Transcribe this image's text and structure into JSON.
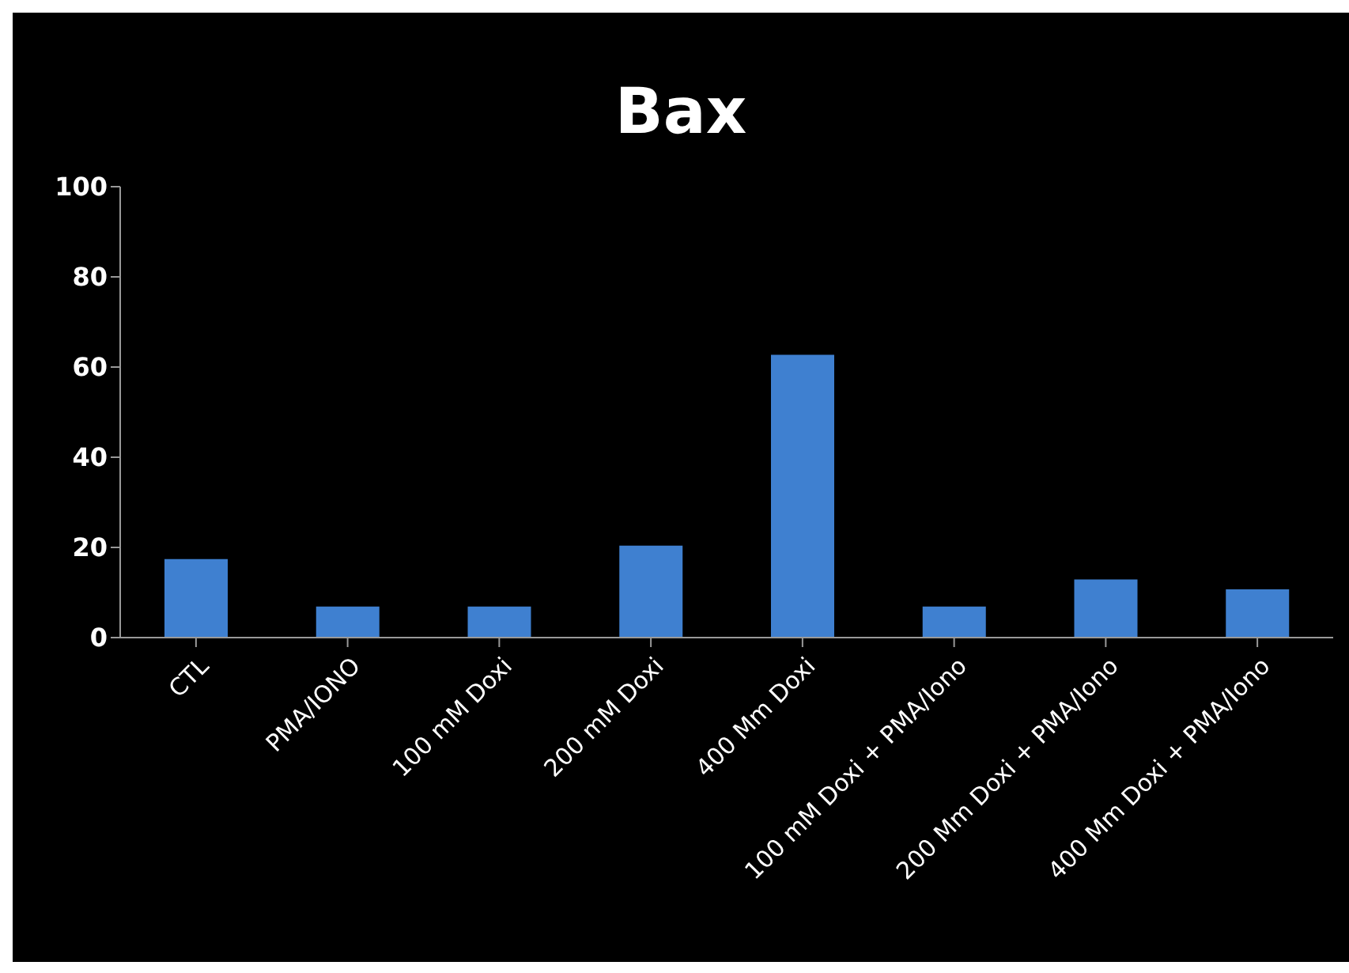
{
  "chart_data": {
    "type": "bar",
    "title": "Bax",
    "categories": [
      "CTL",
      "PMA/IONO",
      "100 mM Doxi",
      "200 mM Doxi",
      "400 Mm Doxi",
      "100 mM Doxi + PMA/Iono",
      "200 Mm Doxi + PMA/Iono",
      "400 Mm Doxi + PMA/Iono"
    ],
    "values": [
      17.4,
      6.9,
      6.9,
      20.4,
      62.7,
      6.9,
      12.9,
      10.7
    ],
    "color": "#3f80d0",
    "ylim": [
      0,
      100
    ],
    "yticks": [
      0,
      20,
      40,
      60,
      80,
      100
    ],
    "grid": false,
    "legend": false
  }
}
